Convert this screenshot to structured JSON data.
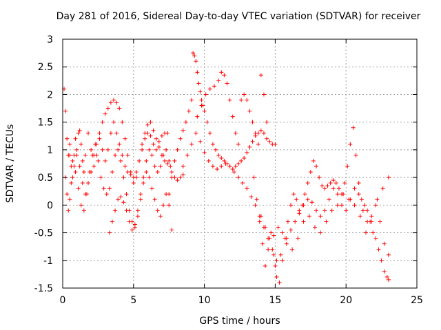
{
  "chart_data": {
    "type": "scatter",
    "title": "Day 281 of 2016, Sidereal Day-to-day VTEC variation (SDTVAR) for receiver",
    "xlabel": "GPS time / hours",
    "ylabel": "SDTVAR / TECUs",
    "xlim": [
      0,
      25
    ],
    "ylim": [
      -1.5,
      3
    ],
    "xticks": [
      0,
      5,
      10,
      15,
      20,
      25
    ],
    "yticks": [
      -1.5,
      -1,
      -0.5,
      0,
      0.5,
      1,
      1.5,
      2,
      2.5,
      3
    ],
    "xtick_labels": [
      "0",
      "5",
      "10",
      "15",
      "20",
      "25"
    ],
    "ytick_labels": [
      "-1.5",
      "-1",
      "-0.5",
      "0",
      "0.5",
      "1",
      "1.5",
      "2",
      "2.5",
      "3"
    ],
    "grid": true,
    "marker": "plus",
    "color": "#ff0000",
    "series": [
      {
        "x": [
          0.1,
          0.2,
          0.3,
          0.4,
          0.5,
          0.6,
          0.7,
          0.8,
          0.9,
          1.0,
          1.1,
          1.2,
          1.3,
          1.4,
          1.5,
          1.6,
          1.8,
          2.0,
          2.2,
          2.4,
          2.6,
          2.8,
          3.0,
          3.2,
          3.4,
          3.6,
          3.8,
          4.0,
          4.2,
          4.4,
          4.6,
          4.8,
          5.0,
          5.2,
          5.4,
          5.6,
          5.8,
          6.0,
          6.2,
          6.4,
          6.6,
          6.8,
          7.0,
          7.2,
          7.4
        ],
        "y": [
          2.1,
          1.7,
          1.2,
          0.9,
          1.1,
          0.7,
          0.5,
          0.9,
          1.2,
          1.0,
          1.3,
          1.35,
          1.1,
          0.8,
          0.6,
          0.9,
          1.3,
          1.0,
          0.7,
          0.9,
          1.2,
          1.0,
          0.8,
          1.0,
          1.3,
          1.5,
          1.3,
          1.1,
          0.9,
          0.7,
          0.6,
          0.55,
          0.5,
          0.6,
          0.8,
          1.0,
          1.2,
          1.3,
          1.25,
          1.1,
          1.0,
          1.15,
          1.25,
          1.3,
          1.3
        ]
      },
      {
        "x": [
          0.2,
          0.3,
          0.4,
          0.5,
          0.6,
          0.8,
          1.0,
          1.2,
          1.4,
          1.6,
          1.8,
          2.0,
          2.2,
          2.4,
          2.6,
          2.8,
          3.0,
          3.2,
          3.4,
          3.6,
          3.8,
          4.0,
          4.2,
          4.4,
          4.6,
          4.8,
          5.0,
          5.2,
          5.4,
          5.6,
          5.8,
          6.0,
          6.2,
          6.4,
          6.6,
          6.8,
          7.0,
          7.2,
          7.4,
          7.6
        ],
        "y": [
          0.5,
          0.2,
          -0.1,
          0.1,
          0.4,
          0.7,
          0.9,
          0.7,
          0.4,
          0.2,
          0.4,
          0.6,
          0.9,
          1.1,
          1.3,
          1.5,
          1.65,
          1.75,
          1.85,
          1.9,
          1.85,
          1.75,
          1.5,
          1.2,
          0.9,
          0.6,
          0.4,
          0.5,
          0.8,
          1.1,
          1.3,
          1.45,
          1.5,
          1.35,
          1.2,
          1.05,
          0.9,
          0.8,
          0.75,
          0.7
        ]
      },
      {
        "x": [
          0.5,
          0.7,
          0.9,
          1.1,
          1.3,
          1.5,
          1.7,
          1.9,
          2.1,
          2.3,
          2.5,
          2.7,
          2.9,
          3.1,
          3.3,
          3.5,
          3.7,
          3.9,
          4.1,
          4.3,
          4.5,
          4.7,
          4.9,
          5.1,
          5.3,
          5.5,
          5.7,
          5.9,
          6.1,
          6.3,
          6.5,
          6.7,
          6.9,
          7.1,
          7.3,
          7.5,
          7.7
        ],
        "y": [
          0.9,
          0.8,
          0.6,
          0.3,
          0.0,
          -0.1,
          0.2,
          0.6,
          0.9,
          1.1,
          0.8,
          0.5,
          0.3,
          0.2,
          0.3,
          0.6,
          0.9,
          1.0,
          0.8,
          0.5,
          0.2,
          -0.1,
          -0.3,
          -0.4,
          -0.2,
          0.1,
          0.4,
          0.6,
          0.5,
          0.3,
          0.1,
          -0.1,
          -0.2,
          0.0,
          0.2,
          0.0,
          -0.45
        ]
      },
      {
        "x": [
          3.3,
          3.5,
          3.7,
          3.9,
          4.1,
          4.3,
          4.5,
          4.7,
          4.9,
          5.1,
          5.3,
          5.5,
          5.7,
          5.9,
          6.1,
          6.3,
          6.5,
          6.7,
          6.9,
          7.1,
          7.3,
          7.5,
          7.7,
          7.9,
          8.1,
          8.3,
          8.5
        ],
        "y": [
          -0.5,
          -0.3,
          -0.1,
          0.1,
          0.15,
          0.05,
          -0.1,
          -0.3,
          -0.45,
          -0.35,
          -0.1,
          0.2,
          0.5,
          0.8,
          1.0,
          0.9,
          0.7,
          0.6,
          0.7,
          0.9,
          1.0,
          0.8,
          0.6,
          0.5,
          0.45,
          0.5,
          0.55
        ]
      },
      {
        "x": [
          7.5,
          7.7,
          7.9,
          8.1,
          8.3,
          8.5,
          8.7,
          8.9,
          9.1,
          9.2,
          9.3,
          9.4,
          9.5,
          9.6,
          9.7,
          9.8,
          9.9,
          10.0,
          10.2,
          10.4,
          10.6,
          10.8,
          11.0,
          11.2,
          11.4,
          11.6,
          11.8,
          12.0,
          12.2,
          12.4,
          12.6,
          12.8,
          13.0,
          13.2,
          13.4,
          13.6,
          13.8,
          14.0,
          14.2,
          14.4,
          14.6,
          14.8,
          15.0
        ],
        "y": [
          0.2,
          0.5,
          0.8,
          1.0,
          1.2,
          1.35,
          1.5,
          1.7,
          1.9,
          2.75,
          2.7,
          2.6,
          2.4,
          2.2,
          2.05,
          1.9,
          1.8,
          1.7,
          1.5,
          1.3,
          1.1,
          1.0,
          0.9,
          0.85,
          0.8,
          0.75,
          0.7,
          0.65,
          0.7,
          0.75,
          0.8,
          0.85,
          0.95,
          1.05,
          1.15,
          1.25,
          1.3,
          1.35,
          1.3,
          1.2,
          1.15,
          1.1,
          1.1
        ]
      },
      {
        "x": [
          8.5,
          8.8,
          9.1,
          9.4,
          9.7,
          10.0,
          10.3,
          10.6,
          10.9,
          11.2,
          11.5,
          11.8,
          12.1,
          12.4,
          12.7,
          13.0,
          13.3,
          13.6,
          13.9,
          14.2,
          14.5,
          14.8,
          15.1
        ],
        "y": [
          0.7,
          0.9,
          1.1,
          1.3,
          1.15,
          0.95,
          0.8,
          0.7,
          0.65,
          0.7,
          0.75,
          0.7,
          0.6,
          0.5,
          0.4,
          0.3,
          0.15,
          0.0,
          -0.2,
          -0.4,
          -0.6,
          -0.8,
          -1.0
        ]
      },
      {
        "x": [
          9.5,
          9.8,
          10.1,
          10.4,
          10.7,
          11.0,
          11.2,
          11.4,
          11.6,
          11.8,
          12.0,
          12.2,
          12.4,
          12.6,
          12.8,
          13.0,
          13.2,
          13.4,
          13.6,
          13.8,
          14.0,
          14.2,
          14.4
        ],
        "y": [
          1.6,
          1.8,
          2.0,
          2.1,
          2.15,
          2.25,
          2.4,
          2.35,
          2.2,
          1.9,
          1.6,
          1.3,
          1.1,
          1.9,
          2.0,
          1.9,
          1.7,
          1.5,
          1.3,
          1.1,
          2.35,
          2.0,
          1.5
        ]
      },
      {
        "x": [
          13.5,
          13.7,
          13.9,
          14.1,
          14.3,
          14.5,
          14.7,
          14.9,
          15.1,
          15.3,
          15.5,
          15.7,
          15.9,
          16.1,
          16.3,
          16.5,
          16.7,
          16.9,
          17.1,
          17.3,
          17.5,
          17.7,
          17.9,
          18.1,
          18.3,
          18.5,
          18.7,
          18.9,
          19.1,
          19.3,
          19.5,
          19.7,
          19.9,
          20.1,
          20.3,
          20.5,
          20.7,
          20.9,
          21.1,
          21.3,
          21.5,
          21.7,
          21.9,
          22.1,
          22.3,
          22.5,
          22.7,
          22.9,
          23.0
        ],
        "y": [
          0.5,
          0.1,
          -0.3,
          -0.7,
          -1.1,
          -0.8,
          -0.5,
          -0.9,
          -1.3,
          -1.4,
          -1.0,
          -0.6,
          -0.3,
          0.0,
          0.2,
          0.1,
          -0.1,
          0.0,
          0.2,
          0.4,
          0.6,
          0.8,
          0.7,
          0.5,
          0.35,
          0.3,
          0.35,
          0.4,
          0.45,
          0.4,
          0.3,
          0.2,
          0.4,
          0.7,
          1.1,
          1.4,
          0.9,
          0.4,
          0.1,
          0.0,
          -0.1,
          -0.3,
          -0.5,
          -0.6,
          -0.8,
          -1.0,
          -1.2,
          -1.3,
          -1.35
        ]
      },
      {
        "x": [
          14.0,
          14.3,
          14.6,
          14.9,
          15.2,
          15.5,
          15.8,
          16.1,
          16.4,
          16.7,
          17.0,
          17.3,
          17.6,
          17.9,
          18.2,
          18.5,
          18.8,
          19.1,
          19.4,
          19.7,
          20.0,
          20.3,
          20.6,
          20.9,
          21.2,
          21.5,
          21.8,
          22.1,
          22.4,
          22.7,
          23.0
        ],
        "y": [
          -0.2,
          -0.4,
          -0.6,
          -0.55,
          -0.4,
          -0.5,
          -0.6,
          -0.45,
          -0.3,
          -0.15,
          0.0,
          0.1,
          0.05,
          -0.1,
          -0.2,
          -0.1,
          0.1,
          0.3,
          0.2,
          0.0,
          -0.1,
          0.1,
          0.3,
          0.2,
          -0.1,
          -0.3,
          -0.2,
          0.0,
          -0.3,
          -0.7,
          -0.9
        ]
      },
      {
        "x": [
          15.0,
          15.4,
          15.8,
          16.2,
          16.6,
          17.0,
          17.4,
          17.8,
          18.2,
          18.6,
          19.0,
          19.4,
          19.8,
          20.2,
          20.6,
          21.0,
          21.4,
          21.8,
          22.2,
          22.6,
          23.0
        ],
        "y": [
          -1.1,
          -0.9,
          -0.7,
          -0.8,
          -0.6,
          -0.3,
          -0.2,
          -0.4,
          -0.5,
          -0.3,
          -0.1,
          0.0,
          0.2,
          0.1,
          0.0,
          -0.2,
          -0.5,
          -0.3,
          0.1,
          0.3,
          0.5
        ]
      }
    ]
  }
}
